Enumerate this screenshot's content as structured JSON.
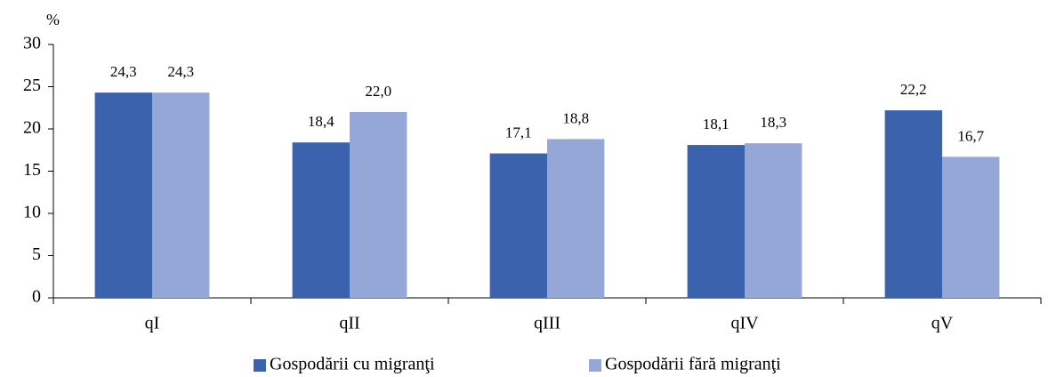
{
  "chart_data": {
    "type": "bar",
    "y_label": "%",
    "categories": [
      "qI",
      "qII",
      "qIII",
      "qIV",
      "qV"
    ],
    "series": [
      {
        "name": "Gospodării cu migranţi",
        "color": "#3a62ad",
        "values": [
          24.3,
          18.4,
          17.1,
          18.1,
          22.2
        ],
        "value_labels": [
          "24,3",
          "18,4",
          "17,1",
          "18,1",
          "22,2"
        ]
      },
      {
        "name": "Gospodării fără migranţi",
        "color": "#94a7d6",
        "values": [
          24.3,
          22.0,
          18.8,
          18.3,
          16.7
        ],
        "value_labels": [
          "24,3",
          "22,0",
          "18,8",
          "18,3",
          "16,7"
        ]
      }
    ],
    "ylim": [
      0,
      30
    ],
    "yticks": [
      0,
      5,
      10,
      15,
      20,
      25,
      30
    ],
    "grid": false,
    "legend": "bottom"
  }
}
